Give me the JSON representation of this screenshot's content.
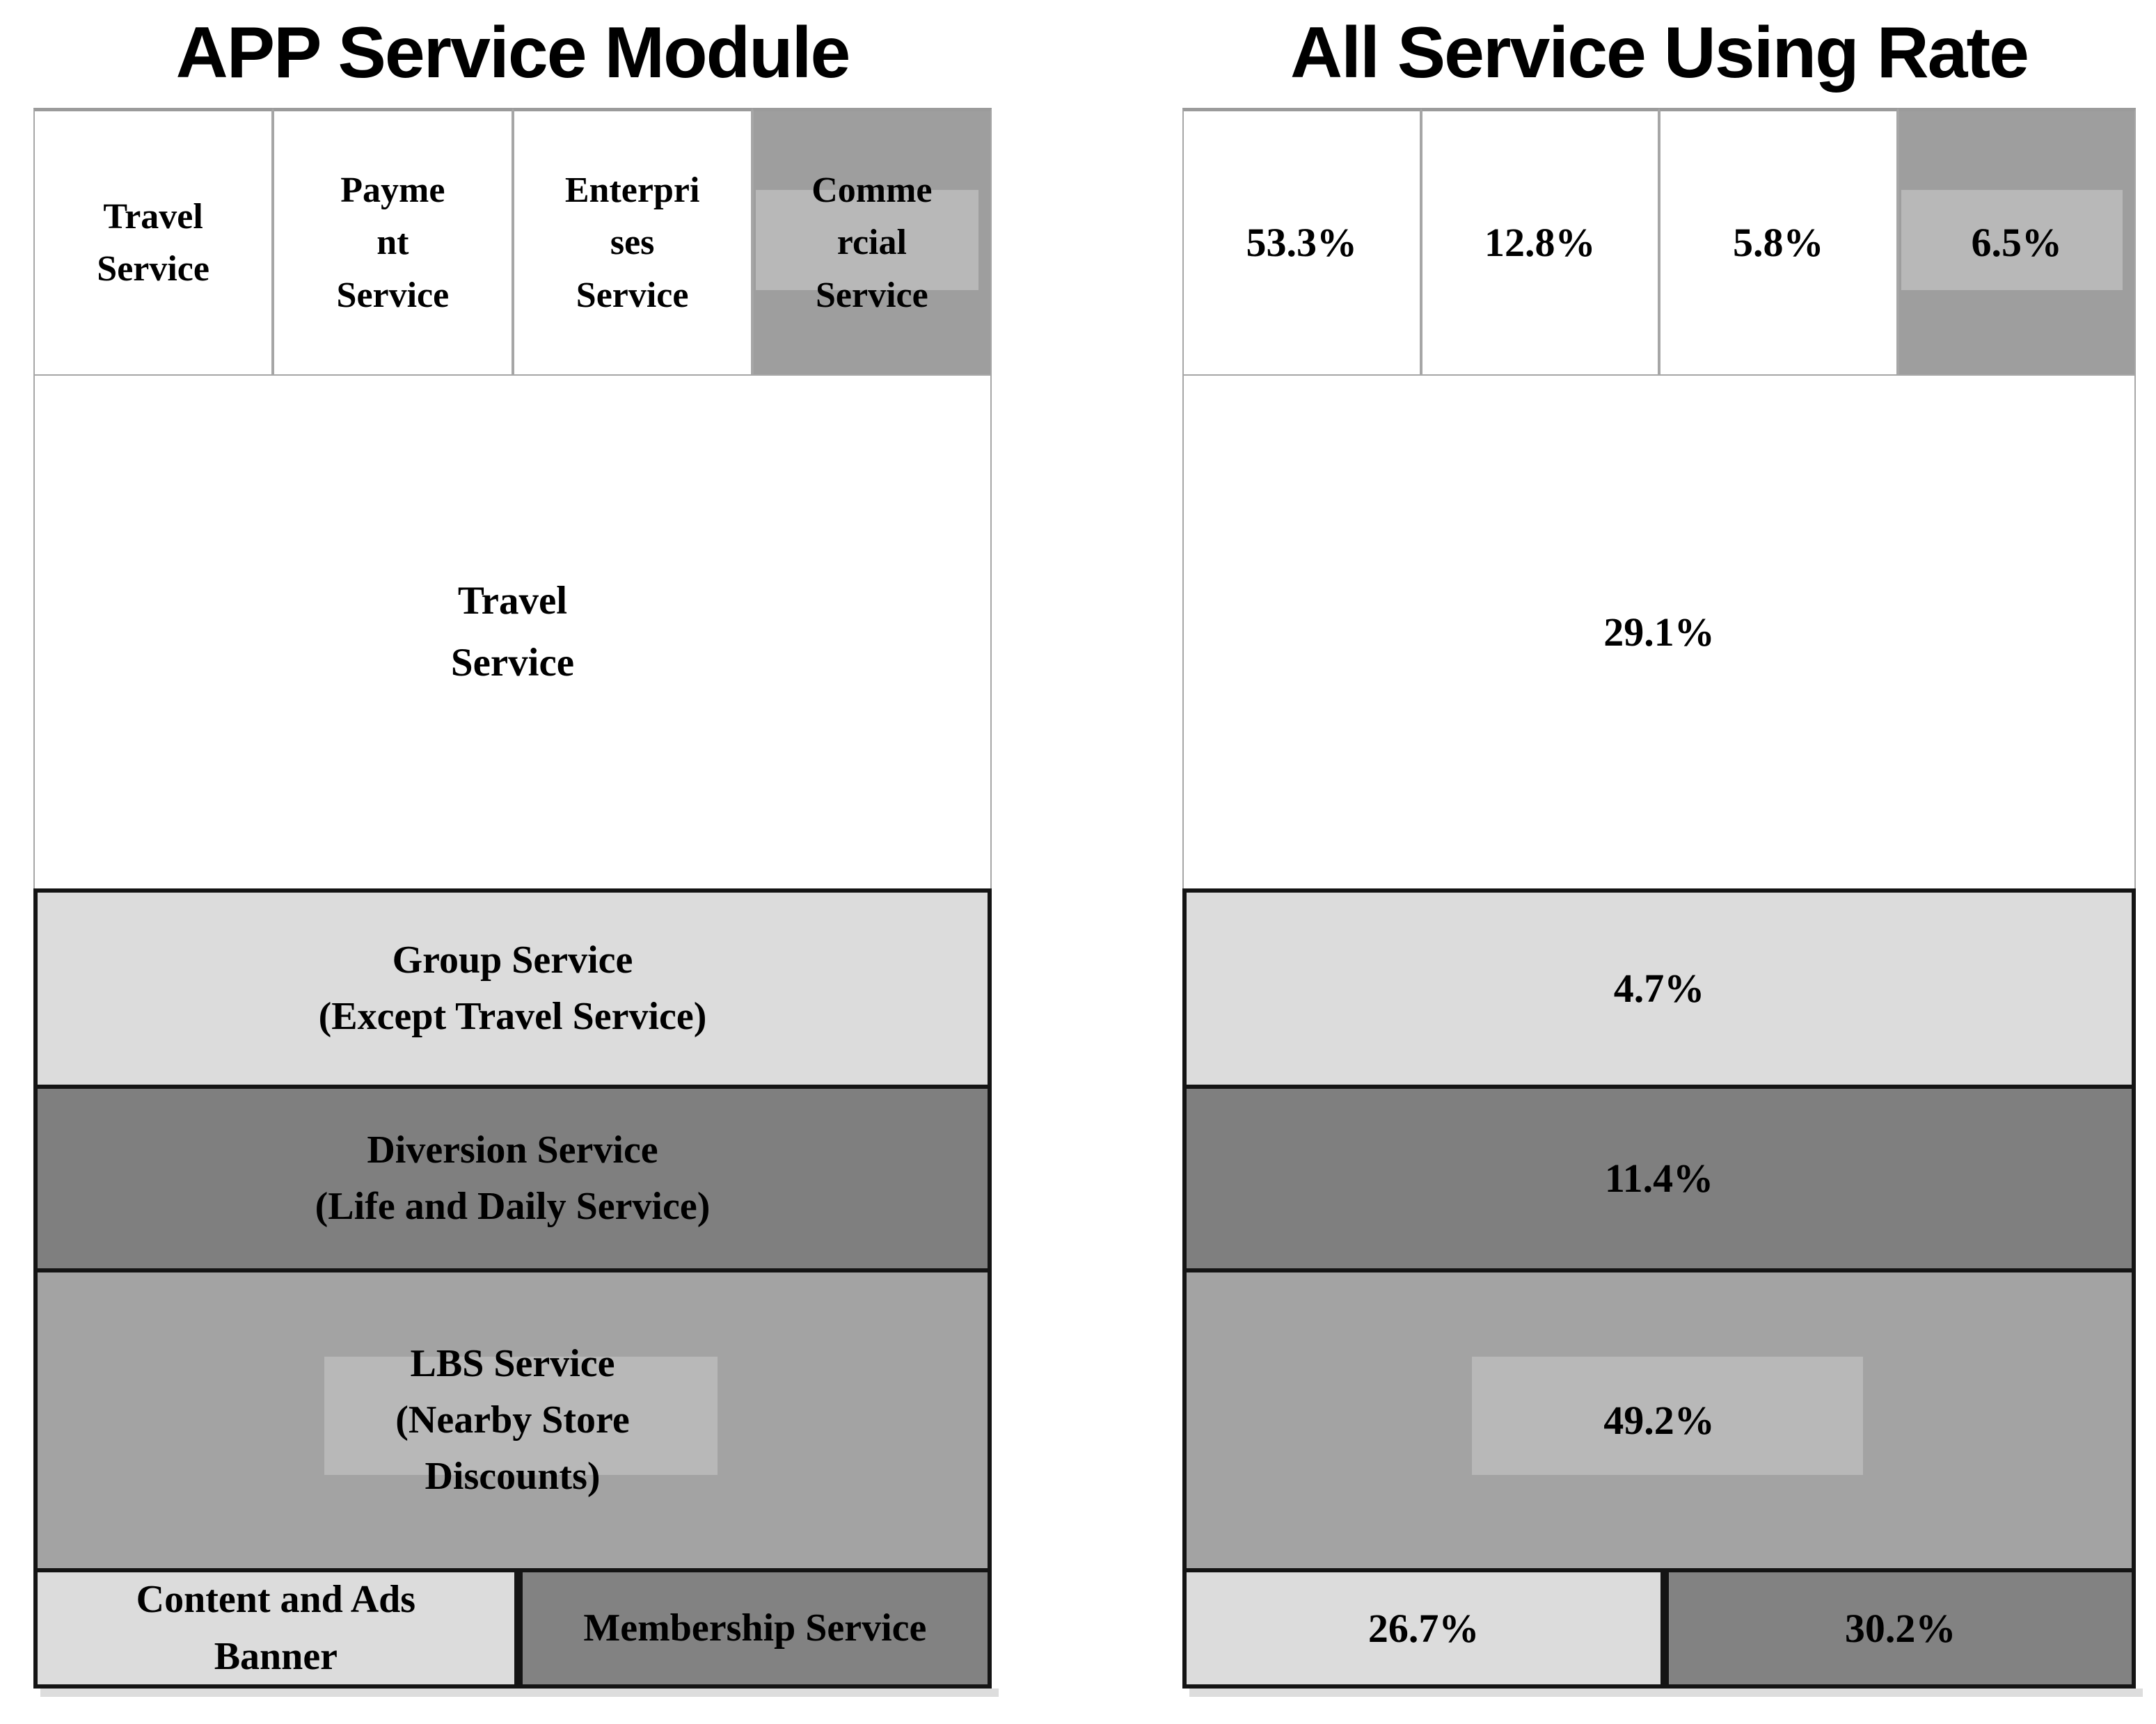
{
  "left_panel": {
    "title": "APP Service Module",
    "top_row": [
      {
        "label": "Travel\nService"
      },
      {
        "label": "Payme\nnt\nService"
      },
      {
        "label": "Enterpri\nses\nService"
      },
      {
        "label": "Comme\nrcial\nService"
      }
    ],
    "main_cell": {
      "label": "Travel\nService"
    },
    "sections": [
      {
        "label": "Group Service\n(Except Travel Service)"
      },
      {
        "label": "Diversion Service\n(Life and Daily Service)"
      },
      {
        "label": "LBS Service\n(Nearby Store\nDiscounts)"
      }
    ],
    "bottom_row": [
      {
        "label": "Content and Ads\nBanner"
      },
      {
        "label": "Membership Service"
      }
    ]
  },
  "right_panel": {
    "title": "All Service Using Rate",
    "top_row": [
      {
        "label": "53.3%"
      },
      {
        "label": "12.8%"
      },
      {
        "label": "5.8%"
      },
      {
        "label": "6.5%"
      }
    ],
    "main_cell": {
      "label": "29.1%"
    },
    "sections": [
      {
        "label": "4.7%"
      },
      {
        "label": "11.4%"
      },
      {
        "label": "49.2%"
      }
    ],
    "bottom_row": [
      {
        "label": "26.7%"
      },
      {
        "label": "30.2%"
      }
    ]
  },
  "colors": {
    "light_gray": "#dcdcdc",
    "medium_gray": "#a3a3a3",
    "dark_gray": "#7f7f7f",
    "cell_gray": "#9e9e9e",
    "highlight_gray": "#b8b8b8",
    "membership_gray": "#828282"
  },
  "chart_data": {
    "type": "table",
    "titles": [
      "APP Service Module",
      "All Service Using Rate"
    ],
    "rows": [
      {
        "service": "Travel Service (top tab)",
        "using_rate": "53.3%"
      },
      {
        "service": "Payment Service",
        "using_rate": "12.8%"
      },
      {
        "service": "Enterprises Service",
        "using_rate": "5.8%"
      },
      {
        "service": "Commercial Service",
        "using_rate": "6.5%"
      },
      {
        "service": "Travel Service (main area)",
        "using_rate": "29.1%"
      },
      {
        "service": "Group Service (Except Travel Service)",
        "using_rate": "4.7%"
      },
      {
        "service": "Diversion Service (Life and Daily Service)",
        "using_rate": "11.4%"
      },
      {
        "service": "LBS Service (Nearby Store Discounts)",
        "using_rate": "49.2%"
      },
      {
        "service": "Content and Ads Banner",
        "using_rate": "26.7%"
      },
      {
        "service": "Membership Service",
        "using_rate": "30.2%"
      }
    ]
  }
}
